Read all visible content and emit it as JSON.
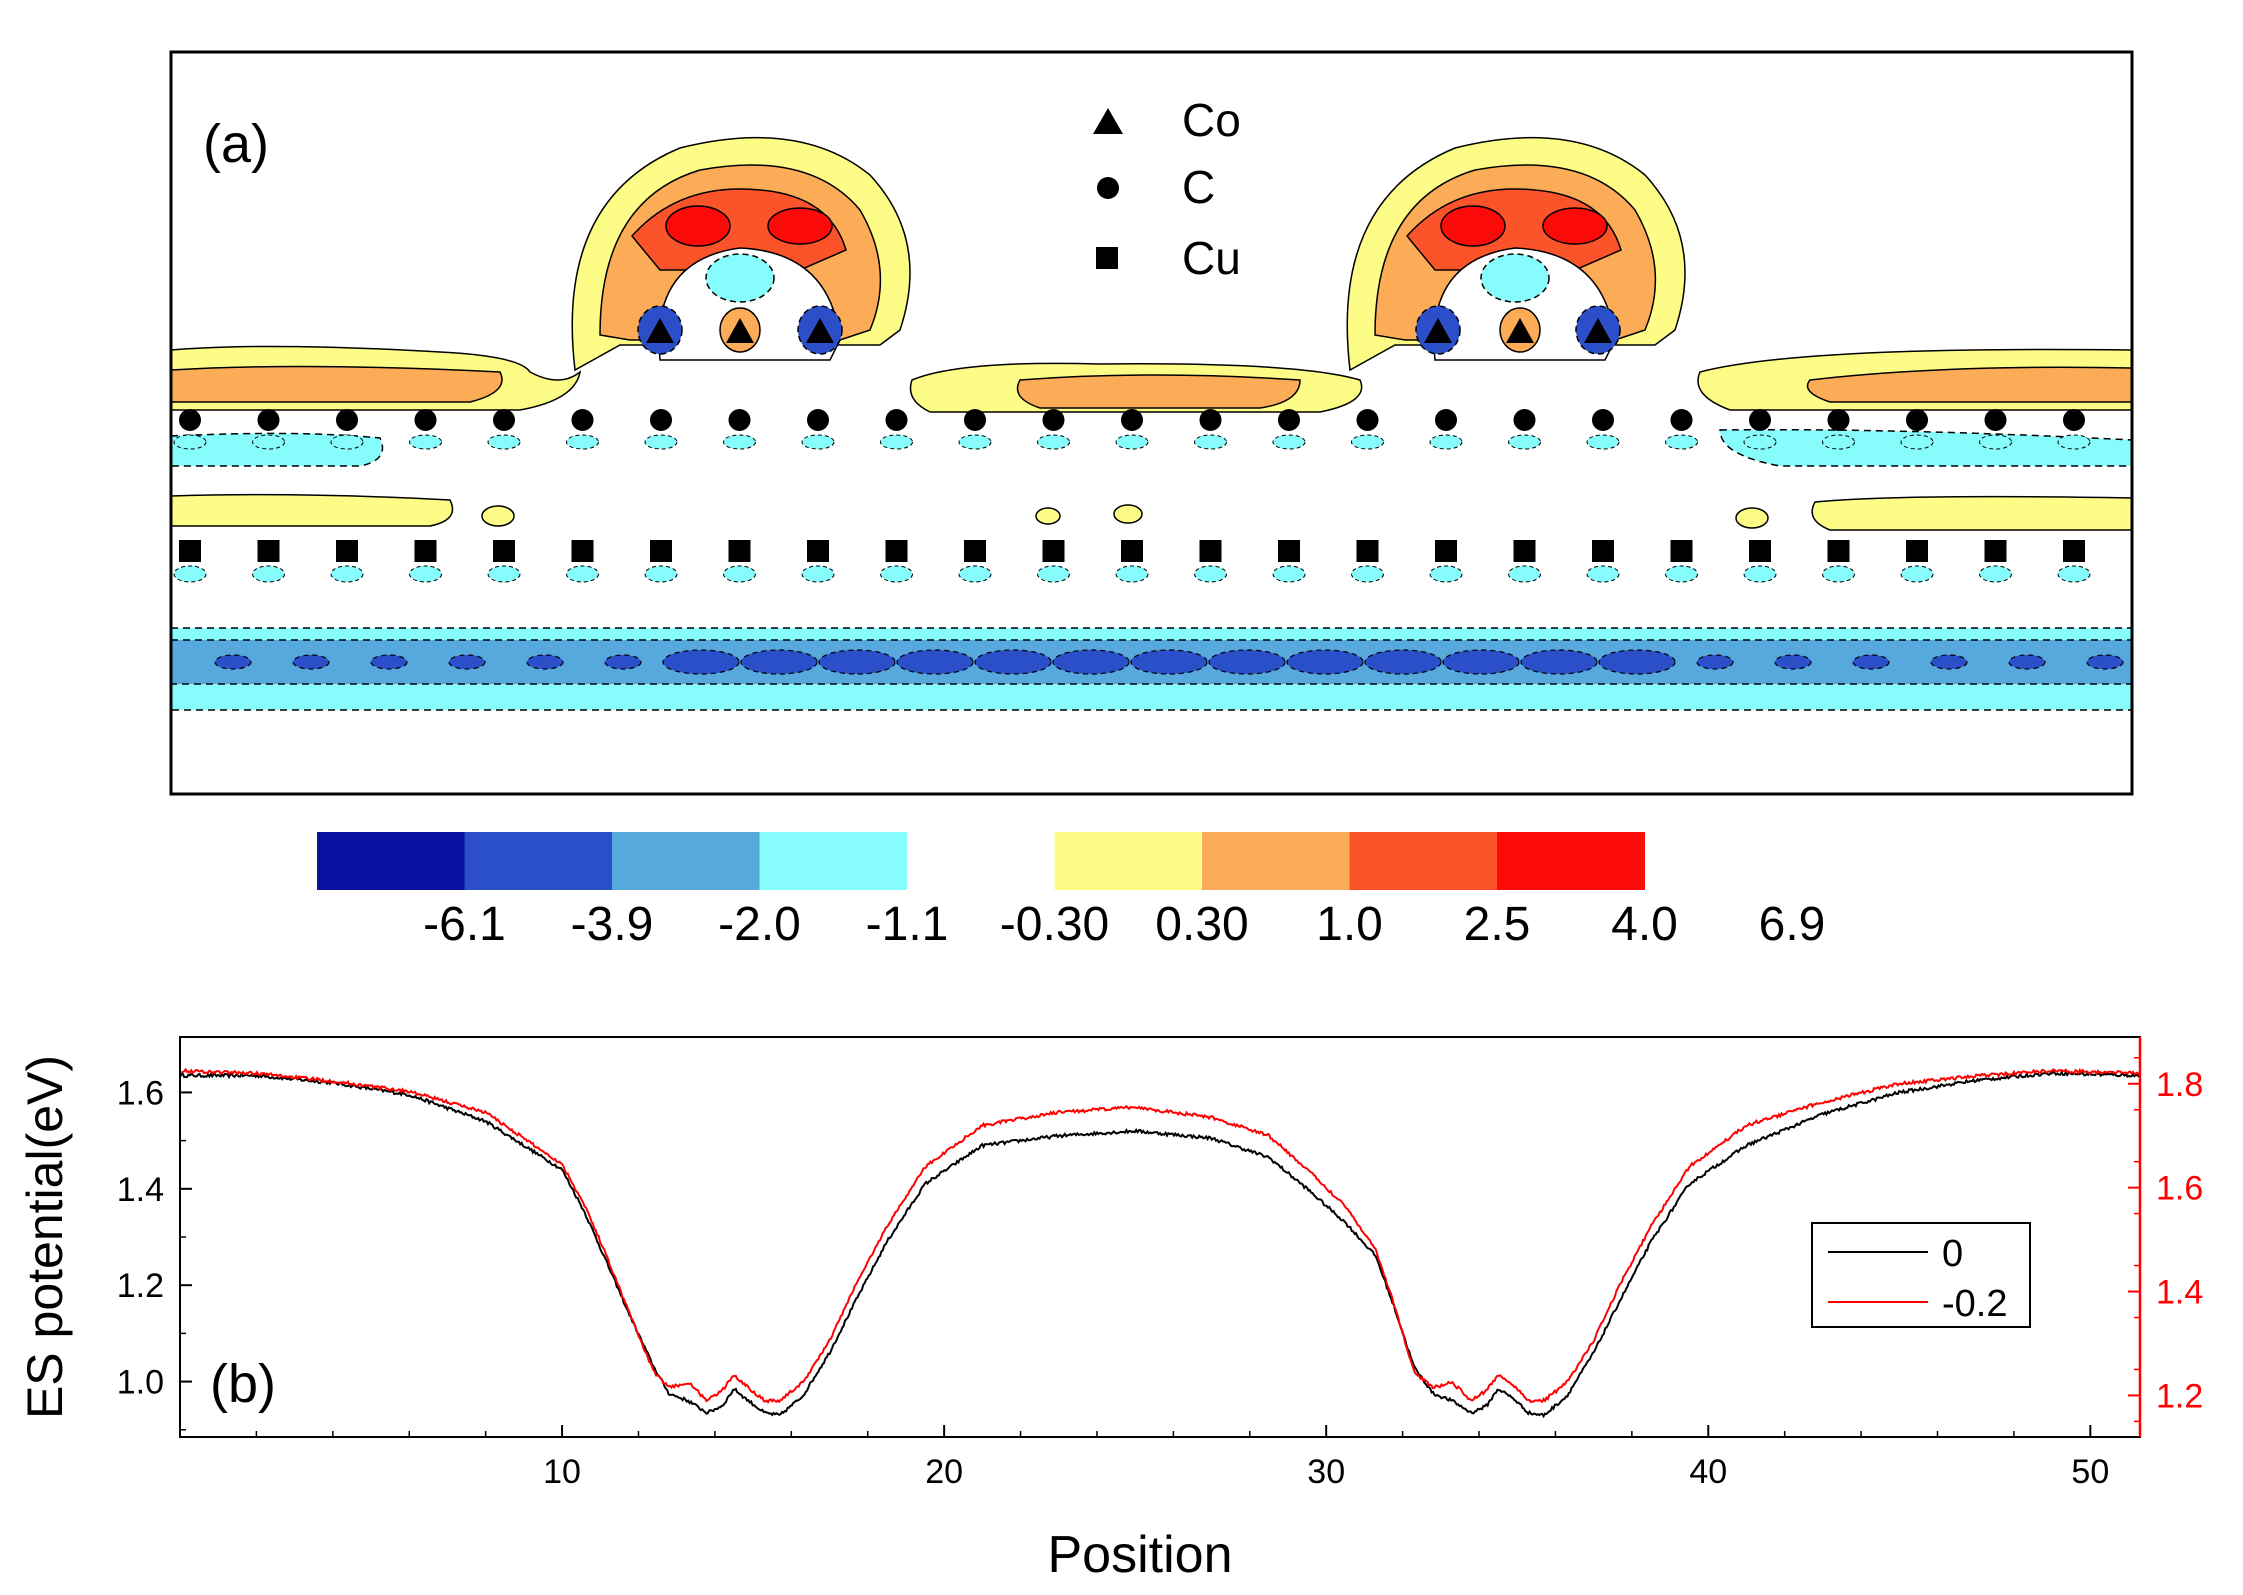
{
  "panel_a": {
    "label": "(a)",
    "legend": [
      {
        "marker": "triangle",
        "label": "Co"
      },
      {
        "marker": "circle",
        "label": "C"
      },
      {
        "marker": "square",
        "label": "Cu"
      }
    ],
    "colorbar": {
      "colors": [
        "#0a10a0",
        "#2a4fc8",
        "#56a8dd",
        "#86fcfc",
        "#ffffff",
        "#fcfc86",
        "#fcab56",
        "#fc542a",
        "#fc0a0a"
      ],
      "labels": [
        "-6.1",
        "-3.9",
        "-2.0",
        "-1.1",
        "-0.30",
        "0.30",
        "1.0",
        "2.5",
        "4.0",
        "6.9"
      ]
    },
    "colors": {
      "neg_deep": "#0a10a0",
      "neg_mid": "#2a4fc8",
      "neg_light": "#56a8dd",
      "neg_pale": "#86fcfc",
      "pos_pale": "#fcfc86",
      "pos_light": "#fcab56",
      "pos_mid": "#fc542a",
      "pos_deep": "#fc0a0a"
    }
  },
  "chart_data": {
    "type": "line",
    "panel_label": "(b)",
    "xlabel": "Position",
    "ylabel": "ES potential(eV)",
    "xlim": [
      0,
      51.3
    ],
    "xticks": [
      10,
      20,
      30,
      40,
      50
    ],
    "xticklabels": [
      "10",
      "20",
      "30",
      "40",
      "50"
    ],
    "ylim_left": [
      0.885,
      1.715
    ],
    "yticks_left": [
      1.0,
      1.2,
      1.4,
      1.6
    ],
    "yticklabels_left": [
      "1.0",
      "1.2",
      "1.4",
      "1.6"
    ],
    "ylim_right": [
      1.12,
      1.89
    ],
    "yticks_right": [
      1.2,
      1.4,
      1.6,
      1.8
    ],
    "yticklabels_right": [
      "1.2",
      "1.4",
      "1.6",
      "1.8"
    ],
    "right_axis_color": "#ff0000",
    "legend_position": "right",
    "series": [
      {
        "name": "0",
        "color": "#000000",
        "axis": "left",
        "x": [
          0.0,
          2.0,
          4.0,
          6.0,
          8.0,
          10.0,
          10.6,
          11.1,
          11.7,
          12.4,
          12.8,
          13.3,
          13.8,
          14.2,
          14.5,
          14.8,
          15.3,
          15.7,
          16.3,
          17.0,
          17.7,
          18.5,
          19.5,
          21.0,
          23.0,
          25.0,
          27.0,
          28.5,
          29.5,
          30.5,
          31.3,
          31.8,
          32.3,
          32.8,
          33.3,
          33.8,
          34.2,
          34.5,
          34.9,
          35.3,
          35.7,
          36.3,
          37.0,
          37.7,
          38.5,
          39.5,
          41.0,
          43.0,
          45.0,
          47.0,
          49.0,
          51.3
        ],
        "y": [
          1.635,
          1.635,
          1.62,
          1.595,
          1.54,
          1.44,
          1.35,
          1.26,
          1.15,
          1.03,
          0.975,
          0.96,
          0.935,
          0.95,
          0.985,
          0.965,
          0.935,
          0.93,
          0.97,
          1.06,
          1.17,
          1.29,
          1.41,
          1.49,
          1.51,
          1.52,
          1.505,
          1.465,
          1.4,
          1.33,
          1.26,
          1.15,
          1.03,
          0.975,
          0.96,
          0.935,
          0.95,
          0.985,
          0.965,
          0.935,
          0.93,
          0.97,
          1.06,
          1.17,
          1.29,
          1.41,
          1.49,
          1.555,
          1.6,
          1.625,
          1.64,
          1.635
        ]
      },
      {
        "name": "-0.2",
        "color": "#ff0000",
        "axis": "right",
        "x": [
          0.0,
          2.0,
          4.0,
          6.0,
          8.0,
          10.0,
          10.6,
          11.1,
          11.7,
          12.4,
          12.8,
          13.3,
          13.8,
          14.2,
          14.5,
          14.8,
          15.3,
          15.7,
          16.3,
          17.0,
          17.7,
          18.5,
          19.5,
          21.0,
          23.0,
          25.0,
          27.0,
          28.5,
          29.5,
          30.5,
          31.3,
          31.8,
          32.3,
          32.8,
          33.3,
          33.8,
          34.2,
          34.5,
          34.9,
          35.3,
          35.7,
          36.3,
          37.0,
          37.7,
          38.5,
          39.5,
          41.0,
          43.0,
          45.0,
          47.0,
          49.0,
          51.3
        ],
        "y": [
          1.825,
          1.82,
          1.805,
          1.785,
          1.745,
          1.645,
          1.565,
          1.48,
          1.37,
          1.245,
          1.215,
          1.225,
          1.19,
          1.21,
          1.24,
          1.22,
          1.19,
          1.19,
          1.225,
          1.305,
          1.415,
          1.525,
          1.64,
          1.72,
          1.745,
          1.755,
          1.735,
          1.7,
          1.635,
          1.565,
          1.48,
          1.37,
          1.245,
          1.215,
          1.225,
          1.19,
          1.21,
          1.24,
          1.22,
          1.19,
          1.19,
          1.225,
          1.305,
          1.415,
          1.525,
          1.64,
          1.72,
          1.765,
          1.8,
          1.815,
          1.825,
          1.82
        ]
      }
    ]
  }
}
